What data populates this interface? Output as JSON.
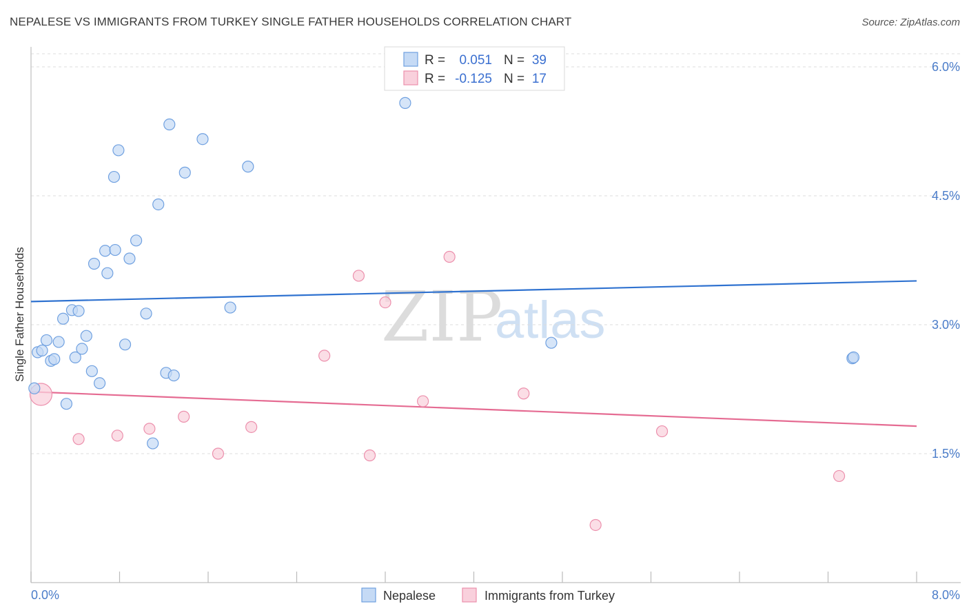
{
  "title": "NEPALESE VS IMMIGRANTS FROM TURKEY SINGLE FATHER HOUSEHOLDS CORRELATION CHART",
  "source": "Source: ZipAtlas.com",
  "chart_data": {
    "type": "scatter",
    "xlabel": "",
    "ylabel": "Single Father Households",
    "xlim": [
      0,
      8
    ],
    "ylim": [
      0,
      6.2
    ],
    "x_tick_labels": [
      "0.0%",
      "8.0%"
    ],
    "y_ticks": [
      1.5,
      3.0,
      4.5,
      6.0
    ],
    "y_tick_labels": [
      "1.5%",
      "3.0%",
      "4.5%",
      "6.0%"
    ],
    "grid": true,
    "colors": {
      "nepalese": "#6fa0e0",
      "nepalese_fill": "#c5daf5",
      "nepalese_line": "#2f72d0",
      "turkey": "#ec8fac",
      "turkey_fill": "#f9d0dc",
      "turkey_line": "#e56b92"
    },
    "stats": [
      {
        "r_label": "R =",
        "r_value": "0.051",
        "n_label": "N =",
        "n_value": "39"
      },
      {
        "r_label": "R =",
        "r_value": "-0.125",
        "n_label": "N =",
        "n_value": "17"
      }
    ],
    "legend": [
      "Nepalese",
      "Immigrants from Turkey"
    ],
    "watermark": {
      "zip": "ZIP",
      "atlas": "atlas"
    },
    "series": [
      {
        "name": "Nepalese",
        "trend": {
          "x": [
            0,
            8
          ],
          "y": [
            3.27,
            3.51
          ]
        },
        "points": [
          [
            0.03,
            2.26
          ],
          [
            0.06,
            2.68
          ],
          [
            0.1,
            2.7
          ],
          [
            0.14,
            2.82
          ],
          [
            0.18,
            2.58
          ],
          [
            0.21,
            2.6
          ],
          [
            0.25,
            2.8
          ],
          [
            0.29,
            3.07
          ],
          [
            0.32,
            2.08
          ],
          [
            0.37,
            3.17
          ],
          [
            0.4,
            2.62
          ],
          [
            0.43,
            3.16
          ],
          [
            0.46,
            2.72
          ],
          [
            0.5,
            2.87
          ],
          [
            0.55,
            2.46
          ],
          [
            0.57,
            3.71
          ],
          [
            0.62,
            2.32
          ],
          [
            0.67,
            3.86
          ],
          [
            0.69,
            3.6
          ],
          [
            0.75,
            4.72
          ],
          [
            0.76,
            3.87
          ],
          [
            0.79,
            5.03
          ],
          [
            0.85,
            2.77
          ],
          [
            0.89,
            3.77
          ],
          [
            0.95,
            3.98
          ],
          [
            1.04,
            3.13
          ],
          [
            1.1,
            1.62
          ],
          [
            1.15,
            4.4
          ],
          [
            1.22,
            2.44
          ],
          [
            1.25,
            5.33
          ],
          [
            1.29,
            2.41
          ],
          [
            1.39,
            4.77
          ],
          [
            1.55,
            5.16
          ],
          [
            1.8,
            3.2
          ],
          [
            1.96,
            4.84
          ],
          [
            3.38,
            5.58
          ],
          [
            4.7,
            2.79
          ],
          [
            7.42,
            2.61
          ],
          [
            7.43,
            2.62
          ]
        ]
      },
      {
        "name": "Immigrants from Turkey",
        "trend": {
          "x": [
            0,
            8
          ],
          "y": [
            2.22,
            1.82
          ]
        },
        "points": [
          [
            0.09,
            2.19
          ],
          [
            0.43,
            1.67
          ],
          [
            0.78,
            1.71
          ],
          [
            1.07,
            1.79
          ],
          [
            1.38,
            1.93
          ],
          [
            1.69,
            1.5
          ],
          [
            1.99,
            1.81
          ],
          [
            2.65,
            2.64
          ],
          [
            2.96,
            3.57
          ],
          [
            3.06,
            1.48
          ],
          [
            3.2,
            3.26
          ],
          [
            3.54,
            2.11
          ],
          [
            3.78,
            3.79
          ],
          [
            4.45,
            2.2
          ],
          [
            5.1,
            0.67
          ],
          [
            5.7,
            1.76
          ],
          [
            7.3,
            1.24
          ]
        ]
      }
    ]
  }
}
